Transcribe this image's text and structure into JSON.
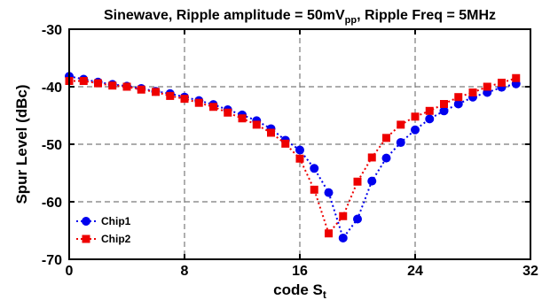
{
  "chart_data": {
    "type": "line",
    "title": {
      "main": "Sinewave, Ripple amplitude = 50mV",
      "sub": "pp",
      "rest": ", Ripple Freq = 5MHz"
    },
    "xlabel": {
      "main": "code S",
      "sub": "t"
    },
    "ylabel": "Spur Level (dBc)",
    "xlim": [
      0,
      32
    ],
    "ylim": [
      -70,
      -30
    ],
    "xticks": [
      "0",
      "8",
      "16",
      "24",
      "32"
    ],
    "yticks": [
      "-30",
      "-40",
      "-50",
      "-60",
      "-70"
    ],
    "grid": true,
    "legend_position": "bottom-left",
    "x": [
      0,
      1,
      2,
      3,
      4,
      5,
      6,
      7,
      8,
      9,
      10,
      11,
      12,
      13,
      14,
      15,
      16,
      17,
      18,
      19,
      20,
      21,
      22,
      23,
      24,
      25,
      26,
      27,
      28,
      29,
      30,
      31
    ],
    "series": [
      {
        "name": "Chip1",
        "color": "#0000ee",
        "marker": "circle",
        "values": [
          -38.2,
          -38.7,
          -39.2,
          -39.6,
          -39.9,
          -40.3,
          -40.8,
          -41.2,
          -41.8,
          -42.4,
          -43.1,
          -44.0,
          -44.9,
          -45.9,
          -47.3,
          -49.3,
          -51.0,
          -54.2,
          -58.4,
          -66.3,
          -63.0,
          -56.4,
          -52.4,
          -49.7,
          -47.5,
          -45.6,
          -44.2,
          -43.0,
          -41.8,
          -41.0,
          -40.1,
          -39.5
        ]
      },
      {
        "name": "Chip2",
        "color": "#ee0000",
        "marker": "square",
        "values": [
          -39.0,
          -39.0,
          -39.4,
          -39.8,
          -40.0,
          -40.5,
          -40.9,
          -41.6,
          -42.1,
          -42.8,
          -43.5,
          -44.5,
          -45.5,
          -46.6,
          -48.0,
          -49.9,
          -52.5,
          -57.9,
          -65.5,
          -62.5,
          -56.5,
          -52.3,
          -48.9,
          -46.6,
          -45.2,
          -44.2,
          -43.0,
          -41.8,
          -41.0,
          -40.0,
          -39.3,
          -38.5
        ]
      }
    ]
  }
}
